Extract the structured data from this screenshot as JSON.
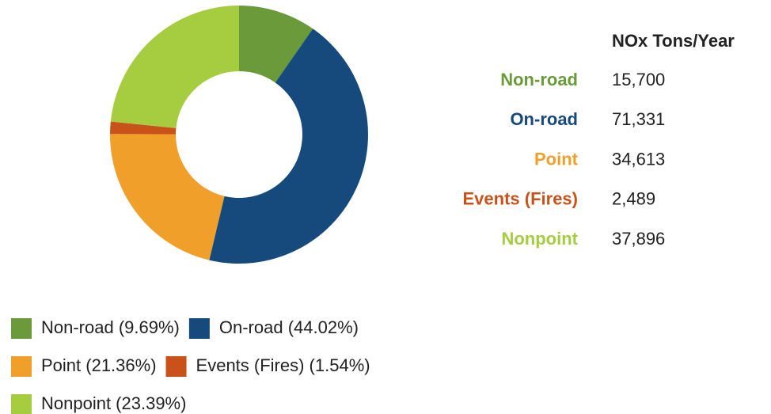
{
  "chart_data": {
    "type": "donut",
    "categories": [
      "Non-road",
      "On-road",
      "Point",
      "Events (Fires)",
      "Nonpoint"
    ],
    "values": [
      15700,
      71331,
      34613,
      2489,
      37896
    ],
    "value_labels": [
      "15,700",
      "71,331",
      "34,613",
      "2,489",
      "37,896"
    ],
    "colors": [
      "#6a9a3a",
      "#174a7c",
      "#f0a02a",
      "#c8521a",
      "#a6cc3f"
    ],
    "table_header": "NOx Tons/Year",
    "legend_labels": [
      "Non-road (9.69%)",
      "On-road (44.02%)",
      "Point (21.36%)",
      "Events (Fires) (1.54%)",
      "Nonpoint (23.39%)"
    ]
  }
}
